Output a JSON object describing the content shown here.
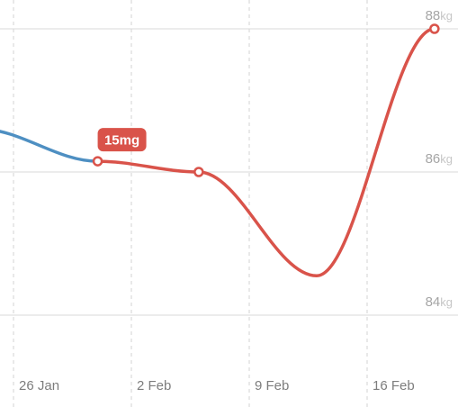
{
  "chart_data": {
    "type": "line",
    "x_labels": [
      "26 Jan",
      "2 Feb",
      "9 Feb",
      "16 Feb"
    ],
    "y_ticks": [
      {
        "value": 84,
        "number": "84",
        "unit": "kg"
      },
      {
        "value": 86,
        "number": "86",
        "unit": "kg"
      },
      {
        "value": 88,
        "number": "88",
        "unit": "kg"
      }
    ],
    "ylim": [
      83.8,
      88.2
    ],
    "series": [
      {
        "color": "#4e8fc2",
        "points": [
          {
            "x": "2025-01-24",
            "y": 86.6
          },
          {
            "x": "2025-01-31",
            "y": 86.15
          }
        ]
      },
      {
        "color": "#d9534a",
        "points": [
          {
            "x": "2025-01-31",
            "y": 86.15,
            "marker": true
          },
          {
            "x": "2025-02-06",
            "y": 86.0,
            "marker": true
          },
          {
            "x": "2025-02-13",
            "y": 84.55,
            "marker": false
          },
          {
            "x": "2025-02-20",
            "y": 88.0,
            "marker": true
          }
        ]
      }
    ],
    "annotations": [
      {
        "text": "15mg",
        "x": "2025-01-31",
        "y": 86.15,
        "color": "#d9534a"
      }
    ],
    "grid": true
  }
}
